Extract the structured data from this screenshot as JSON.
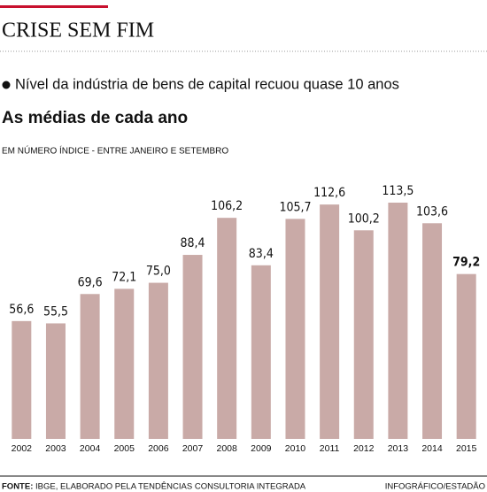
{
  "chart_data": {
    "type": "bar",
    "title": "CRISE SEM FIM",
    "subtitle": "Nível da indústria de bens de capital recuou quase 10 anos",
    "heading": "As médias de cada ano",
    "unit_note": "EM NÚMERO ÍNDICE - ENTRE JANEIRO E SETEMBRO",
    "categories": [
      "2002",
      "2003",
      "2004",
      "2005",
      "2006",
      "2007",
      "2008",
      "2009",
      "2010",
      "2011",
      "2012",
      "2013",
      "2014",
      "2015"
    ],
    "values": [
      56.6,
      55.5,
      69.6,
      72.1,
      75.0,
      88.4,
      106.2,
      83.4,
      105.7,
      112.6,
      100.2,
      113.5,
      103.6,
      79.2
    ],
    "value_labels": [
      "56,6",
      "55,5",
      "69,6",
      "72,1",
      "75,0",
      "88,4",
      "106,2",
      "83,4",
      "105,7",
      "112,6",
      "100,2",
      "113,5",
      "103,6",
      "79,2"
    ],
    "color": "#c9aaa7",
    "source_label": "FONTE:",
    "source": "IBGE, ELABORADO PELA TENDÊNCIAS CONSULTORIA INTEGRADA",
    "credit": "INFOGRÁFICO/ESTADÃO"
  }
}
